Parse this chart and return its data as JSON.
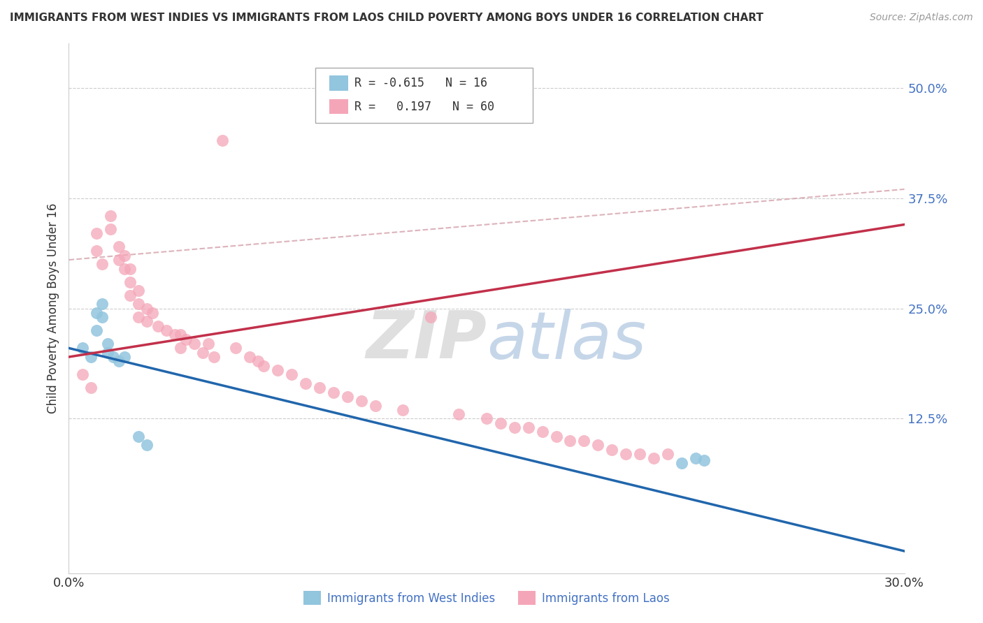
{
  "title": "IMMIGRANTS FROM WEST INDIES VS IMMIGRANTS FROM LAOS CHILD POVERTY AMONG BOYS UNDER 16 CORRELATION CHART",
  "source": "Source: ZipAtlas.com",
  "xlabel_west_indies": "Immigrants from West Indies",
  "xlabel_laos": "Immigrants from Laos",
  "ylabel": "Child Poverty Among Boys Under 16",
  "xlim": [
    0,
    0.3
  ],
  "ylim": [
    -0.05,
    0.55
  ],
  "yticks": [
    0.0,
    0.125,
    0.25,
    0.375,
    0.5
  ],
  "ytick_labels": [
    "",
    "12.5%",
    "25.0%",
    "37.5%",
    "50.0%"
  ],
  "xticks": [
    0.0,
    0.3
  ],
  "xtick_labels": [
    "0.0%",
    "30.0%"
  ],
  "legend_r_wi": "-0.615",
  "legend_n_wi": "16",
  "legend_r_laos": "0.197",
  "legend_n_laos": "60",
  "color_west_indies": "#92c5de",
  "color_laos": "#f4a6b8",
  "color_trend_wi": "#2166ac",
  "color_trend_laos": "#c2304a",
  "color_trend_dashed": "#d4a0aa",
  "watermark_zip": "ZIP",
  "watermark_atlas": "atlas",
  "trend_wi_x0": 0.0,
  "trend_wi_y0": 0.205,
  "trend_wi_x1": 0.3,
  "trend_wi_y1": -0.025,
  "trend_laos_x0": 0.0,
  "trend_laos_y0": 0.195,
  "trend_laos_x1": 0.3,
  "trend_laos_y1": 0.345,
  "trend_dash_x0": 0.0,
  "trend_dash_y0": 0.305,
  "trend_dash_x1": 0.3,
  "trend_dash_y1": 0.385,
  "west_indies_x": [
    0.005,
    0.008,
    0.01,
    0.01,
    0.012,
    0.012,
    0.014,
    0.014,
    0.016,
    0.018,
    0.02,
    0.025,
    0.028,
    0.22,
    0.225,
    0.228
  ],
  "west_indies_y": [
    0.205,
    0.195,
    0.245,
    0.225,
    0.255,
    0.24,
    0.21,
    0.2,
    0.195,
    0.19,
    0.195,
    0.105,
    0.095,
    0.075,
    0.08,
    0.078
  ],
  "laos_x": [
    0.005,
    0.008,
    0.01,
    0.01,
    0.012,
    0.015,
    0.015,
    0.018,
    0.018,
    0.02,
    0.02,
    0.022,
    0.022,
    0.022,
    0.025,
    0.025,
    0.025,
    0.028,
    0.028,
    0.03,
    0.032,
    0.035,
    0.038,
    0.04,
    0.04,
    0.042,
    0.045,
    0.048,
    0.05,
    0.052,
    0.055,
    0.06,
    0.065,
    0.068,
    0.07,
    0.075,
    0.08,
    0.085,
    0.09,
    0.095,
    0.1,
    0.105,
    0.11,
    0.12,
    0.13,
    0.14,
    0.15,
    0.155,
    0.16,
    0.165,
    0.17,
    0.175,
    0.18,
    0.185,
    0.19,
    0.195,
    0.2,
    0.205,
    0.21,
    0.215
  ],
  "laos_y": [
    0.175,
    0.16,
    0.335,
    0.315,
    0.3,
    0.34,
    0.355,
    0.305,
    0.32,
    0.295,
    0.31,
    0.28,
    0.265,
    0.295,
    0.27,
    0.255,
    0.24,
    0.25,
    0.235,
    0.245,
    0.23,
    0.225,
    0.22,
    0.205,
    0.22,
    0.215,
    0.21,
    0.2,
    0.21,
    0.195,
    0.44,
    0.205,
    0.195,
    0.19,
    0.185,
    0.18,
    0.175,
    0.165,
    0.16,
    0.155,
    0.15,
    0.145,
    0.14,
    0.135,
    0.24,
    0.13,
    0.125,
    0.12,
    0.115,
    0.115,
    0.11,
    0.105,
    0.1,
    0.1,
    0.095,
    0.09,
    0.085,
    0.085,
    0.08,
    0.085
  ]
}
